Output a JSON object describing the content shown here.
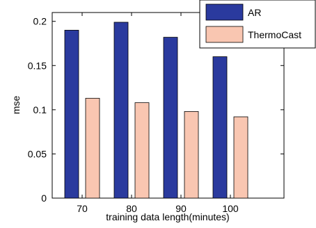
{
  "chart_data": {
    "type": "bar",
    "categories": [
      "70",
      "80",
      "90",
      "100"
    ],
    "series": [
      {
        "name": "AR",
        "values": [
          0.19,
          0.199,
          0.182,
          0.16
        ],
        "color": "#2a3a9e"
      },
      {
        "name": "ThermoCast",
        "values": [
          0.113,
          0.108,
          0.098,
          0.092
        ],
        "color": "#f9c6b1"
      }
    ],
    "xlabel": "training data length(minutes)",
    "ylabel": "mse",
    "ylim": [
      0,
      0.21
    ],
    "yticks": [
      0,
      0.05,
      0.1,
      0.15,
      0.2
    ],
    "ytick_labels": [
      "0",
      "0.05",
      "0.1",
      "0.15",
      "0.2"
    ],
    "grid": false,
    "legend_position": "top-right"
  }
}
